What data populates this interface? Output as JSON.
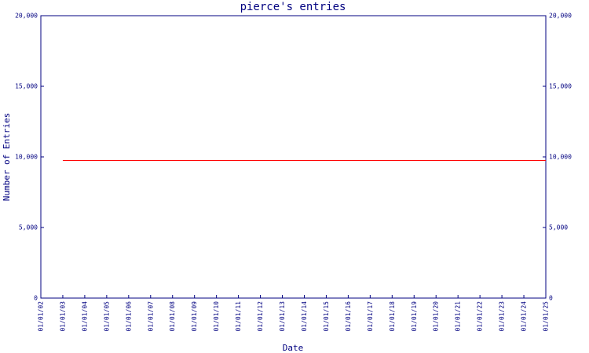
{
  "chart_data": {
    "type": "line",
    "title": "pierce's entries",
    "y_label": "Number of Entries",
    "x_label": "Date",
    "categories": [
      "01/01/02",
      "01/01/03",
      "01/01/04",
      "01/01/05",
      "01/01/06",
      "01/01/07",
      "01/01/08",
      "01/01/09",
      "01/01/10",
      "01/01/11",
      "01/01/12",
      "01/01/13",
      "01/01/14",
      "01/01/15",
      "01/01/16",
      "01/01/17",
      "01/01/18",
      "01/01/19",
      "01/01/20",
      "01/01/21",
      "01/01/22",
      "01/01/23",
      "01/01/24",
      "01/01/25"
    ],
    "series": [
      {
        "color": "#ff0000",
        "values": [
          null,
          9750,
          9750,
          9750,
          9750,
          9750,
          9750,
          9750,
          9750,
          9750,
          9750,
          9750,
          9750,
          9750,
          9750,
          9750,
          9750,
          9750,
          9750,
          9750,
          9750,
          9750,
          9750,
          9750
        ]
      }
    ],
    "ylim": [
      0,
      20000
    ],
    "yticks": [
      0,
      {
        "value": 5000,
        "label": "5,000"
      },
      {
        "value": 10000,
        "label": "10,000"
      },
      {
        "value": 15000,
        "label": "15,000"
      },
      {
        "value": 20000,
        "label": "20,000"
      }
    ],
    "y2lim": [
      0,
      20000
    ],
    "y2ticks": [
      0,
      {
        "value": 5000,
        "label": "5,000"
      },
      {
        "value": 10000,
        "label": "10,000"
      },
      {
        "value": 15000,
        "label": "15,000"
      },
      {
        "value": 20000,
        "label": "20,000"
      }
    ],
    "grid": false
  }
}
